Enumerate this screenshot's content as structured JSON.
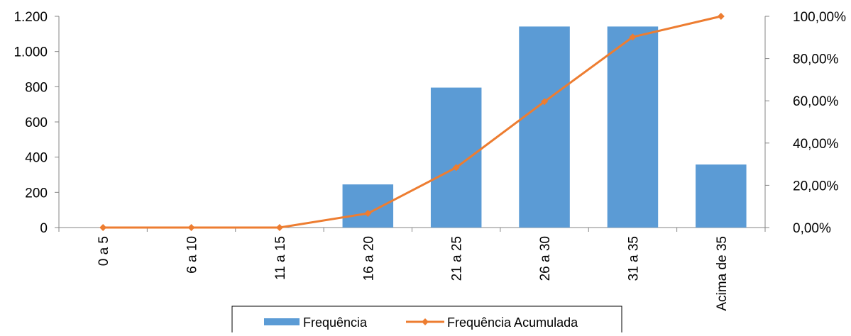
{
  "chart_data": {
    "type": "bar",
    "categories": [
      "0 a 5",
      "6 a 10",
      "11 a 15",
      "16 a 20",
      "21 a 25",
      "26 a 30",
      "31 a 35",
      "Acima de 35"
    ],
    "series": [
      {
        "name": "Frequência",
        "type": "bar",
        "axis": "left",
        "color": "#5B9BD5",
        "values": [
          0,
          0,
          0,
          245,
          795,
          1142,
          1142,
          358
        ]
      },
      {
        "name": "Frequência Acumulada",
        "type": "line",
        "axis": "right",
        "color": "#ED7D31",
        "marker": "diamond",
        "values": [
          0.0,
          0.0,
          0.0,
          6.7,
          28.4,
          59.6,
          90.2,
          100.0
        ]
      }
    ],
    "y_left": {
      "ylim": [
        0,
        1200
      ],
      "ticks": [
        0,
        200,
        400,
        600,
        800,
        1000,
        1200
      ],
      "tick_labels": [
        "0",
        "200",
        "400",
        "600",
        "800",
        "1.000",
        "1.200"
      ]
    },
    "y_right": {
      "ylim": [
        0,
        100
      ],
      "ticks": [
        0,
        20,
        40,
        60,
        80,
        100
      ],
      "tick_labels": [
        "0,00%",
        "20,00%",
        "40,00%",
        "60,00%",
        "80,00%",
        "100,00%"
      ]
    },
    "grid": false,
    "legend": {
      "placement": "bottom-center",
      "entries": [
        "Frequência",
        "Frequência Acumulada"
      ]
    },
    "title": "",
    "xlabel": "",
    "ylabel": ""
  }
}
